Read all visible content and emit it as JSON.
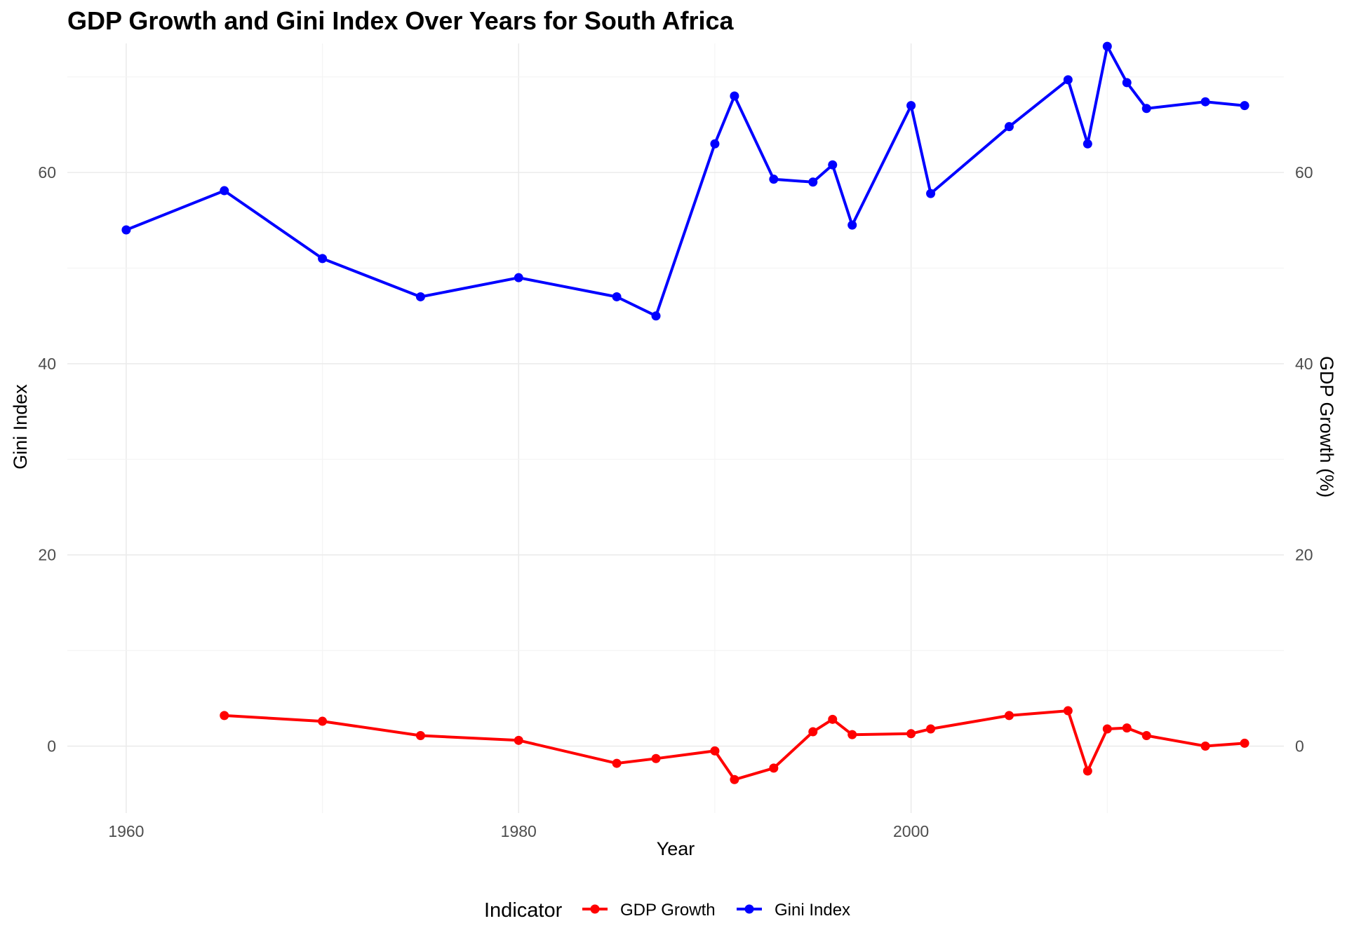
{
  "chart_data": {
    "type": "line",
    "title": "GDP Growth and Gini Index Over Years for  South Africa",
    "xlabel": "Year",
    "ylabel": "Gini Index",
    "y2label": "GDP Growth (%)",
    "xlim": [
      1957,
      2019
    ],
    "ylim": [
      -7,
      73.5
    ],
    "x_ticks": [
      1960,
      1980,
      2000
    ],
    "y_ticks": [
      0,
      20,
      40,
      60
    ],
    "y2_ticks": [
      0,
      20,
      40,
      60
    ],
    "grid": true,
    "legend": {
      "title": "Indicator",
      "position": "bottom"
    },
    "series": [
      {
        "name": "GDP Growth",
        "color": "#ff0000",
        "x": [
          1965,
          1970,
          1975,
          1980,
          1985,
          1987,
          1990,
          1991,
          1993,
          1995,
          1996,
          1997,
          2000,
          2001,
          2005,
          2008,
          2009,
          2010,
          2011,
          2012,
          2015,
          2017
        ],
        "y": [
          3.2,
          2.6,
          1.1,
          0.6,
          -1.8,
          -1.3,
          -0.5,
          -3.5,
          -2.3,
          1.5,
          2.8,
          1.2,
          1.3,
          1.8,
          3.2,
          3.7,
          -2.6,
          1.8,
          1.9,
          1.1,
          0.0,
          0.3
        ]
      },
      {
        "name": "Gini Index",
        "color": "#0000ff",
        "x": [
          1960,
          1965,
          1970,
          1975,
          1980,
          1985,
          1987,
          1990,
          1991,
          1993,
          1995,
          1996,
          1997,
          2000,
          2001,
          2005,
          2008,
          2009,
          2010,
          2011,
          2012,
          2015,
          2017
        ],
        "y": [
          54.0,
          58.1,
          51.0,
          47.0,
          49.0,
          47.0,
          45.0,
          63.0,
          68.0,
          59.3,
          59.0,
          60.8,
          54.5,
          67.0,
          57.8,
          64.8,
          69.7,
          63.0,
          73.2,
          69.4,
          66.7,
          67.4,
          67.0
        ]
      }
    ]
  }
}
